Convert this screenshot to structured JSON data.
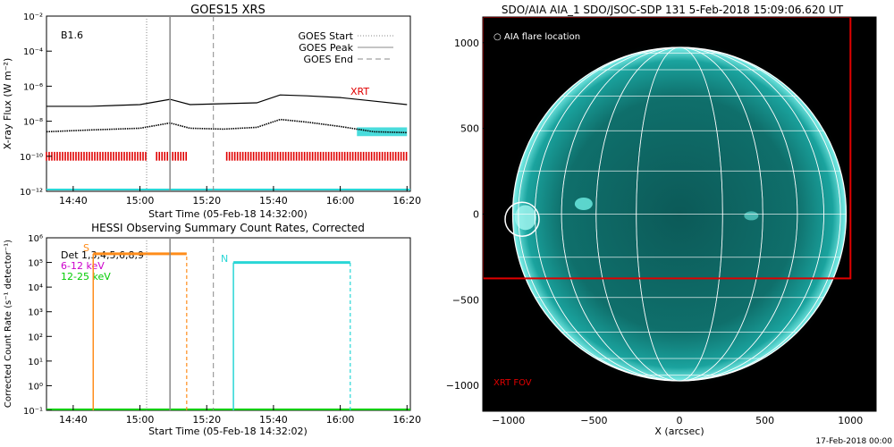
{
  "footer_date": "17-Feb-2018 00:00",
  "chart_data": [
    {
      "type": "line",
      "title": "GOES15 XRS",
      "xlabel": "Start Time (05-Feb-18 14:32:00)",
      "ylabel": "X-ray Flux (W m⁻²)",
      "x_ticks": [
        "14:40",
        "15:00",
        "15:20",
        "15:40",
        "16:00",
        "16:20"
      ],
      "y_ticks": [
        "10⁻¹²",
        "10⁻¹⁰",
        "10⁻⁸",
        "10⁻⁶",
        "10⁻⁴",
        "10⁻²"
      ],
      "y_scale": "log",
      "ylim": [
        -12,
        -2
      ],
      "class_label": "B1.6",
      "legend": [
        "GOES Start",
        "GOES Peak",
        "GOES End"
      ],
      "annotation_xrt": "XRT",
      "vlines": {
        "start": "15:02",
        "peak": "15:09",
        "end": "15:22"
      },
      "series": [
        {
          "name": "long",
          "x": [
            "14:32",
            "14:45",
            "15:00",
            "15:09",
            "15:15",
            "15:25",
            "15:35",
            "15:42",
            "15:50",
            "16:00",
            "16:10",
            "16:20"
          ],
          "values": [
            -7.15,
            -7.15,
            -7.05,
            -6.75,
            -7.05,
            -7.0,
            -6.95,
            -6.5,
            -6.55,
            -6.65,
            -6.85,
            -7.05
          ]
        },
        {
          "name": "short",
          "x": [
            "14:32",
            "14:45",
            "15:00",
            "15:09",
            "15:15",
            "15:25",
            "15:35",
            "15:42",
            "15:50",
            "16:00",
            "16:10",
            "16:20"
          ],
          "values": [
            -8.6,
            -8.5,
            -8.4,
            -8.1,
            -8.4,
            -8.45,
            -8.35,
            -7.9,
            -8.05,
            -8.3,
            -8.6,
            -8.65
          ]
        }
      ],
      "red_bars_intervals": [
        [
          "14:32",
          "15:02"
        ],
        [
          "15:05",
          "15:14"
        ],
        [
          "15:26",
          "16:20"
        ]
      ],
      "cyan_band": [
        "16:05",
        "16:20"
      ]
    },
    {
      "type": "line",
      "title": "HESSI Observing Summary Count Rates, Corrected",
      "xlabel": "Start Time (05-Feb-18 14:32:02)",
      "ylabel": "Corrected Count Rate (s⁻¹ detector⁻¹)",
      "x_ticks": [
        "14:40",
        "15:00",
        "15:20",
        "15:40",
        "16:00",
        "16:20"
      ],
      "y_ticks": [
        "10⁻¹",
        "10⁰",
        "10¹",
        "10²",
        "10³",
        "10⁴",
        "10⁵",
        "10⁶"
      ],
      "y_scale": "log",
      "ylim": [
        -1,
        6
      ],
      "legend": [
        "Det 1,3,4,5,6,8,9",
        "6-12 keV",
        "12-25 keV"
      ],
      "legend_colors": [
        "#000000",
        "#cc00cc",
        "#00cc00"
      ],
      "annotation_n": "N",
      "annotation_s": "S",
      "segments": [
        {
          "name": "orange",
          "color": "#ff8c1a",
          "x": [
            "14:46",
            "15:14"
          ],
          "value": 5.35
        },
        {
          "name": "cyan",
          "color": "#29d6d6",
          "x": [
            "15:28",
            "16:03"
          ],
          "value": 5.0
        }
      ],
      "vlines": {
        "start": "15:02",
        "peak": "15:09",
        "end": "15:22"
      }
    },
    {
      "type": "heatmap",
      "title": "SDO/AIA AIA_1 SDO/JSOC-SDP 131  5-Feb-2018 15:09:06.620 UT",
      "xlabel": "X (arcsec)",
      "ylabel": "",
      "x_ticks": [
        "−1000",
        "−500",
        "0",
        "500",
        "1000"
      ],
      "y_ticks": [
        "1000",
        "500",
        "0",
        "−500",
        "−1000"
      ],
      "xlim": [
        -1150,
        1150
      ],
      "ylim": [
        -1150,
        1150
      ],
      "legend_label": "○ AIA flare location",
      "fov_label": "XRT FOV",
      "flare_location": [
        -920,
        -30
      ],
      "fov_box": [
        -1150,
        -375,
        1000,
        1150
      ],
      "colors": {
        "disk": "#1aa39e",
        "grid": "#ffffff",
        "fov": "#e00000"
      }
    }
  ]
}
